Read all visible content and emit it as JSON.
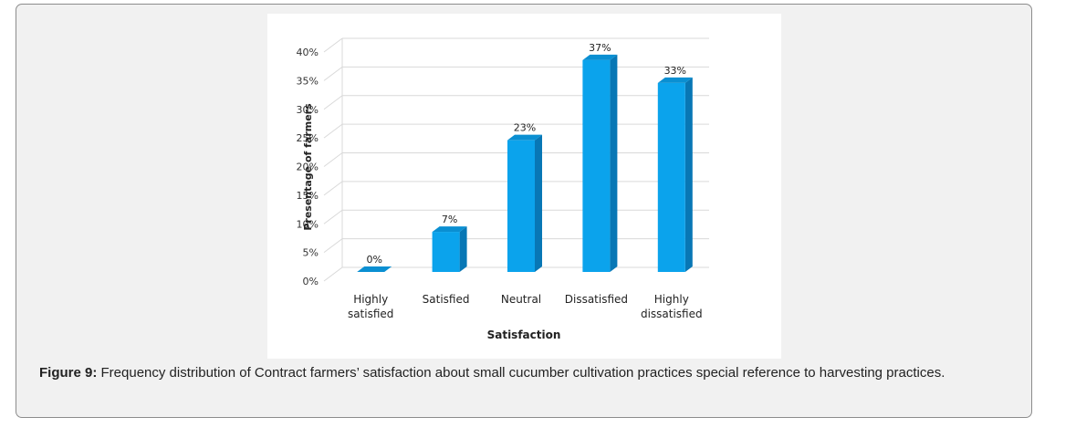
{
  "caption": {
    "label": "Figure 9:",
    "text": "Frequency distribution of Contract farmers’ satisfaction about small cucumber cultivation practices special reference to harvesting practices."
  },
  "colors": {
    "bar_front": "#0ba3ec",
    "bar_side": "#0877b5",
    "bar_top": "#0a8fd2",
    "grid": "#d9d9d9",
    "figure_bg": "#f1f1f1"
  },
  "chart_data": {
    "type": "bar",
    "style": "3d-column",
    "categories": [
      [
        "Highly",
        "satisfied"
      ],
      [
        "Satisfied"
      ],
      [
        "Neutral"
      ],
      [
        "Dissatisfied"
      ],
      [
        "Highly",
        "dissatisfied"
      ]
    ],
    "values": [
      0,
      7,
      23,
      37,
      33
    ],
    "data_labels": [
      "0%",
      "7%",
      "23%",
      "37%",
      "33%"
    ],
    "xlabel": "Satisfaction",
    "ylabel": "Presentage of farmers",
    "ylim": [
      0,
      40
    ],
    "yticks": [
      0,
      5,
      10,
      15,
      20,
      25,
      30,
      35,
      40
    ],
    "ytick_labels": [
      "0%",
      "5%",
      "10%",
      "15%",
      "20%",
      "25%",
      "30%",
      "35%",
      "40%"
    ],
    "grid": true,
    "legend": "none"
  }
}
